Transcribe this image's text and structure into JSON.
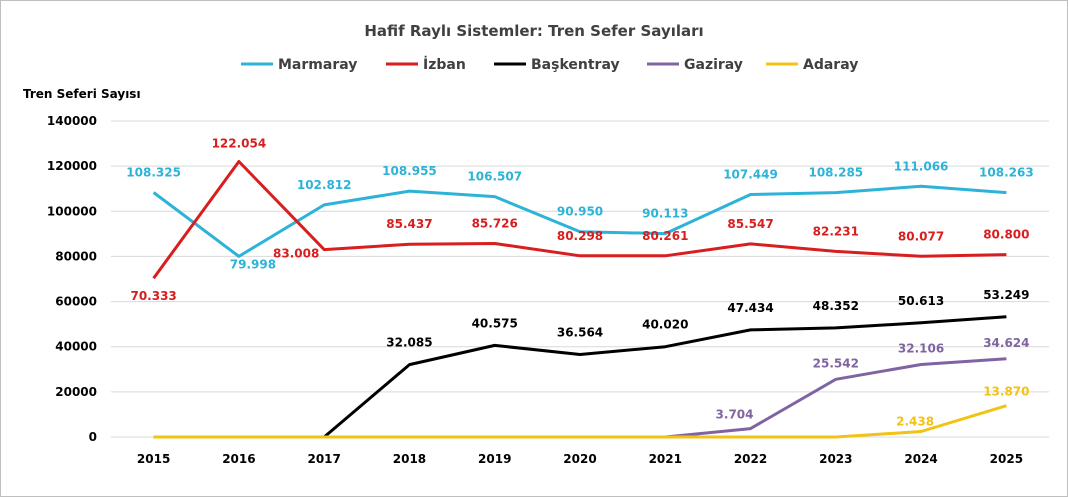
{
  "chart_data": {
    "type": "line",
    "title": "Hafif Raylı Sistemler: Tren Sefer Sayıları",
    "ylabel": "Tren Seferi Sayısı",
    "xlabel": "",
    "x": [
      "2015",
      "2016",
      "2017",
      "2018",
      "2019",
      "2020",
      "2021",
      "2022",
      "2023",
      "2024",
      "2025"
    ],
    "ylim": [
      0,
      140000
    ],
    "yticks": [
      "0",
      "20000",
      "40000",
      "60000",
      "80000",
      "100000",
      "120000",
      "140000"
    ],
    "grid": true,
    "legend_position": "top",
    "series": [
      {
        "name": "Marmaray",
        "color": "#2db3d8",
        "values": [
          108325,
          79998,
          102812,
          108955,
          106507,
          90950,
          90113,
          107449,
          108285,
          111066,
          108263
        ],
        "labels": [
          "108.325",
          "79.998",
          "102.812",
          "108.955",
          "106.507",
          "90.950",
          "90.113",
          "107.449",
          "108.285",
          "111.066",
          "108.263"
        ]
      },
      {
        "name": "İzban",
        "color": "#d81e1e",
        "values": [
          70333,
          122054,
          83008,
          85437,
          85726,
          80298,
          80261,
          85547,
          82231,
          80077,
          80800
        ],
        "labels": [
          "70.333",
          "122.054",
          "83.008",
          "85.437",
          "85.726",
          "80.298",
          "80.261",
          "85.547",
          "82.231",
          "80.077",
          "80.800"
        ]
      },
      {
        "name": "Başkentray",
        "color": "#000000",
        "values": [
          0,
          0,
          0,
          32085,
          40575,
          36564,
          40020,
          47434,
          48352,
          50613,
          53249
        ],
        "labels": [
          "",
          "",
          "",
          "32.085",
          "40.575",
          "36.564",
          "40.020",
          "47.434",
          "48.352",
          "50.613",
          "53.249"
        ]
      },
      {
        "name": "Gaziray",
        "color": "#8064a2",
        "values": [
          0,
          0,
          0,
          0,
          0,
          0,
          0,
          3704,
          25542,
          32106,
          34624
        ],
        "labels": [
          "",
          "",
          "",
          "",
          "",
          "",
          "",
          "3.704",
          "25.542",
          "32.106",
          "34.624"
        ]
      },
      {
        "name": "Adaray",
        "color": "#f2c314",
        "values": [
          0,
          0,
          0,
          0,
          0,
          0,
          0,
          0,
          0,
          2438,
          13870
        ],
        "labels": [
          "",
          "",
          "",
          "",
          "",
          "",
          "",
          "",
          "",
          "2.438",
          "13.870"
        ]
      }
    ]
  }
}
